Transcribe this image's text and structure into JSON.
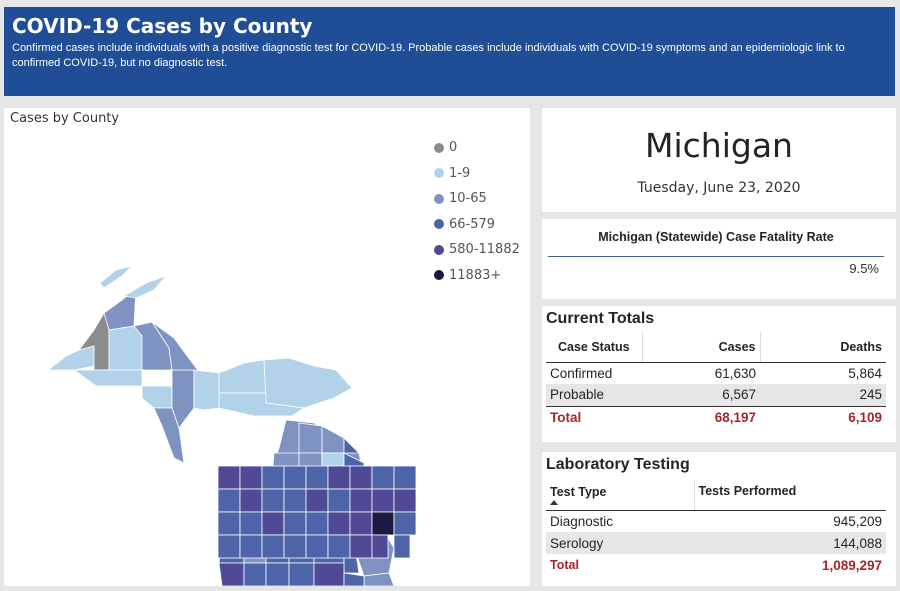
{
  "header": {
    "title": "COVID-19 Cases by County",
    "subtitle": "Confirmed cases include individuals with a positive diagnostic test for COVID-19. Probable cases include individuals with COVID-19 symptoms and an epidemiologic link to confirmed COVID-19, but no diagnostic test."
  },
  "map": {
    "title": "Cases by County",
    "legend": [
      {
        "label": "0",
        "color": "#8c8c8c"
      },
      {
        "label": "1-9",
        "color": "#b2d2ea"
      },
      {
        "label": "10-65",
        "color": "#7f93c2"
      },
      {
        "label": "66-579",
        "color": "#4e64a8"
      },
      {
        "label": "580-11882",
        "color": "#4f4996"
      },
      {
        "label": "11883+",
        "color": "#1b1a40"
      }
    ]
  },
  "state": {
    "name": "Michigan",
    "date": "Tuesday, June 23, 2020"
  },
  "cfr": {
    "title": "Michigan (Statewide) Case Fatality Rate",
    "value": "9.5%"
  },
  "totals": {
    "title": "Current Totals",
    "headers": {
      "status": "Case Status",
      "cases": "Cases",
      "deaths": "Deaths"
    },
    "rows": [
      {
        "status": "Confirmed",
        "cases": "61,630",
        "deaths": "5,864"
      },
      {
        "status": "Probable",
        "cases": "6,567",
        "deaths": "245"
      }
    ],
    "total": {
      "status": "Total",
      "cases": "68,197",
      "deaths": "6,109"
    }
  },
  "lab": {
    "title": "Laboratory Testing",
    "headers": {
      "type": "Test Type",
      "tests": "Tests Performed"
    },
    "rows": [
      {
        "type": "Diagnostic",
        "tests": "945,209"
      },
      {
        "type": "Serology",
        "tests": "144,088"
      }
    ],
    "total": {
      "type": "Total",
      "tests": "1,089,297"
    }
  }
}
